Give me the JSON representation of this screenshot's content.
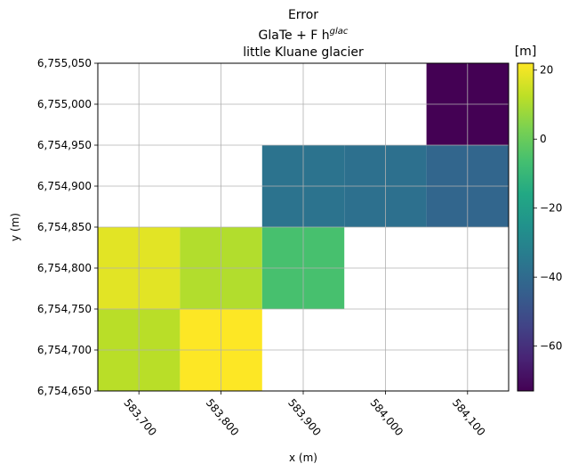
{
  "chart_data": {
    "type": "heatmap",
    "title_lines": [
      "Error",
      "GlaTe + F h",
      "little Kluane glacier"
    ],
    "title_superscript": "glac",
    "xlabel": "x (m)",
    "ylabel": "y (m)",
    "xlim": [
      583650,
      584150
    ],
    "ylim": [
      6754650,
      6755050
    ],
    "x_ticks": [
      583700,
      583800,
      583900,
      584000,
      584100
    ],
    "x_tick_labels": [
      "583,700",
      "583,800",
      "583,900",
      "584,000",
      "584,100"
    ],
    "y_ticks": [
      6754650,
      6754700,
      6754750,
      6754800,
      6754850,
      6754900,
      6754950,
      6755000,
      6755050
    ],
    "y_tick_labels": [
      "6,754,650",
      "6,754,700",
      "6,754,750",
      "6,754,800",
      "6,754,850",
      "6,754,900",
      "6,754,950",
      "6,755,000",
      "6,755,050"
    ],
    "grid": true,
    "cell_size": 100,
    "cells": [
      {
        "x": 583700,
        "y": 6754700,
        "value": 12
      },
      {
        "x": 583800,
        "y": 6754700,
        "value": 22
      },
      {
        "x": 583700,
        "y": 6754800,
        "value": 18
      },
      {
        "x": 583800,
        "y": 6754800,
        "value": 11
      },
      {
        "x": 583900,
        "y": 6754800,
        "value": -6
      },
      {
        "x": 583900,
        "y": 6754900,
        "value": -37
      },
      {
        "x": 584000,
        "y": 6754900,
        "value": -38
      },
      {
        "x": 584100,
        "y": 6754900,
        "value": -42
      },
      {
        "x": 584100,
        "y": 6755000,
        "value": -73
      }
    ],
    "colormap": "viridis",
    "color_range": [
      -73,
      22
    ],
    "colorbar": {
      "label": "[m]",
      "ticks": [
        20,
        0,
        -20,
        -40,
        -60
      ],
      "tick_labels": [
        "20",
        "0",
        "−20",
        "−40",
        "−60"
      ]
    },
    "colors": {
      "grid": "#b0b0b0",
      "spine": "#000000"
    }
  }
}
